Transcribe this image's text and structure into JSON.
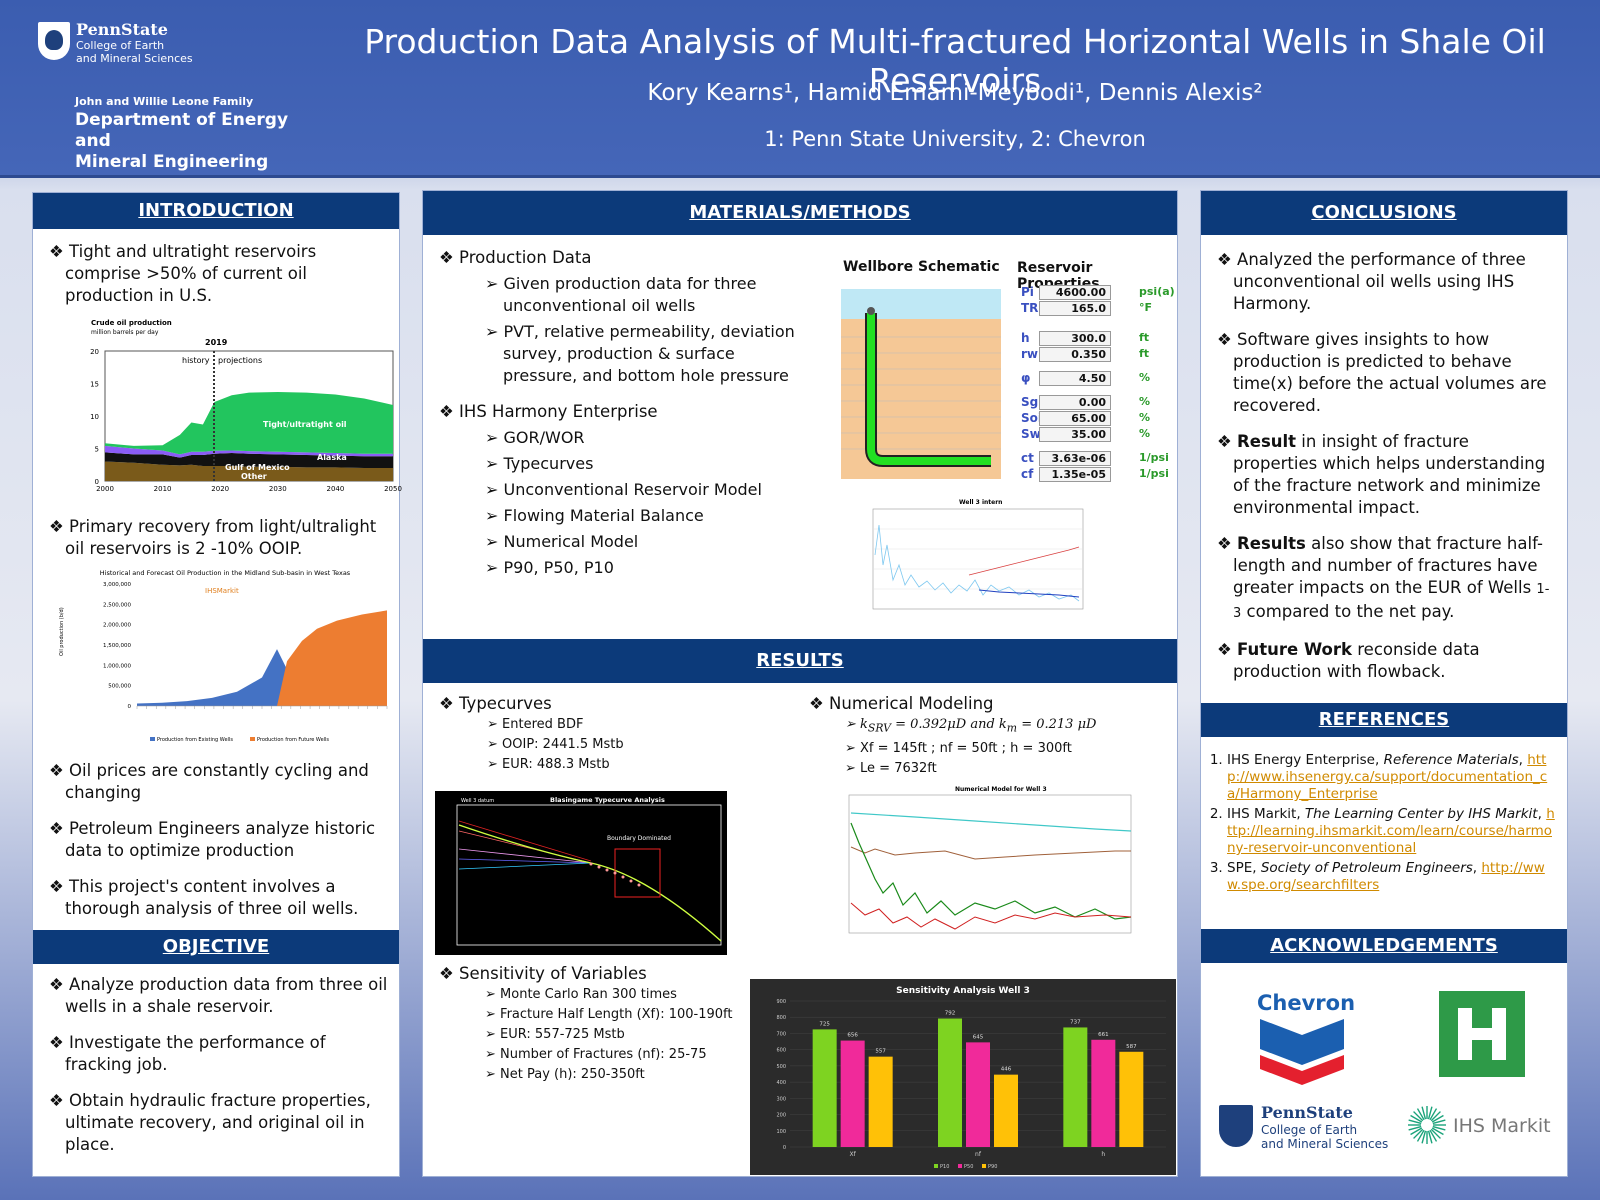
{
  "header": {
    "logo": {
      "name": "PennState",
      "sub1": "College of Earth",
      "sub2": "and Mineral Sciences"
    },
    "dept_top": "John and Willie Leone Family",
    "dept1": "Department of Energy and",
    "dept2": "Mineral Engineering",
    "title": "Production Data Analysis of Multi-fractured Horizontal Wells in Shale Oil Reservoirs",
    "authors": "Kory Kearns¹, Hamid Emami-Meybodi¹, Dennis Alexis²",
    "affiliations": "1: Penn State University, 2: Chevron"
  },
  "intro": {
    "heading": "INTRODUCTION",
    "b1": "Tight and ultratight reservoirs comprise >50% of current oil production in U.S.",
    "b2": "Primary recovery from light/ultralight oil reservoirs is 2 -10% OOIP.",
    "b3": "Oil prices are constantly cycling and changing",
    "b4": "Petroleum Engineers analyze historic data to optimize production",
    "b5": "This project's content involves a thorough analysis of three oil wells."
  },
  "chart1": {
    "title": "Crude oil production",
    "subtitle": "million barrels per day",
    "year": "2019",
    "history": "history",
    "projections": "projections",
    "l_tight": "Tight/ultratight oil",
    "l_alaska": "Alaska",
    "l_gulf": "Gulf of Mexico",
    "l_other": "Other",
    "yticks": [
      "20",
      "15",
      "10",
      "5",
      "0"
    ],
    "xticks": [
      "2000",
      "2010",
      "2020",
      "2030",
      "2040",
      "2050"
    ]
  },
  "chart_data": [
    {
      "type": "area",
      "title": "Crude oil production",
      "subtitle": "million barrels per day",
      "x": [
        2000,
        2005,
        2010,
        2013,
        2015,
        2017,
        2019,
        2022,
        2025,
        2030,
        2035,
        2040,
        2045,
        2050
      ],
      "series": [
        {
          "name": "Tight/ultratight oil",
          "values": [
            0.4,
            0.4,
            0.8,
            3.0,
            4.5,
            4.2,
            7.5,
            8.5,
            9.0,
            9.2,
            9.2,
            9.0,
            8.5,
            7.5
          ]
        },
        {
          "name": "Alaska",
          "values": [
            1,
            0.9,
            0.6,
            0.5,
            0.5,
            0.5,
            0.45,
            0.4,
            0.4,
            0.4,
            0.4,
            0.4,
            0.4,
            0.4
          ]
        },
        {
          "name": "Gulf of Mexico",
          "values": [
            1.4,
            1.3,
            1.6,
            1.2,
            1.5,
            1.7,
            1.9,
            2.0,
            2.0,
            1.9,
            1.9,
            1.8,
            1.8,
            1.8
          ]
        },
        {
          "name": "Other",
          "values": [
            3,
            2.8,
            2.5,
            2.4,
            2.5,
            2.3,
            2.3,
            2.3,
            2.2,
            2.2,
            2.1,
            2.1,
            2.0,
            2.0
          ]
        }
      ],
      "ylim": [
        0,
        20
      ],
      "xlim": [
        2000,
        2050
      ]
    },
    {
      "type": "area",
      "title": "Historical and Forecast Oil Production in the Midland Sub-basin in West Texas",
      "x": [
        0,
        5,
        10,
        15,
        20,
        25,
        28,
        30,
        33,
        36,
        40,
        45,
        50
      ],
      "series": [
        {
          "name": "Production from Existing Wells",
          "values": [
            60000,
            80000,
            120000,
            200000,
            350000,
            700000,
            1400000,
            900000,
            600000,
            450000,
            350000,
            300000,
            250000
          ]
        },
        {
          "name": "Production from Future Wells",
          "values": [
            0,
            0,
            0,
            0,
            0,
            0,
            0,
            1100000,
            1600000,
            1900000,
            2100000,
            2250000,
            2350000
          ]
        }
      ],
      "ylim": [
        0,
        3000000
      ]
    },
    {
      "type": "bar",
      "title": "Sensitivity Analysis Well 3",
      "categories": [
        "Xf",
        "nf",
        "h"
      ],
      "series": [
        {
          "name": "P10",
          "values": [
            725,
            792,
            737
          ]
        },
        {
          "name": "P50",
          "values": [
            656,
            645,
            661
          ]
        },
        {
          "name": "P90",
          "values": [
            557,
            446,
            587
          ]
        }
      ],
      "ylim": [
        0,
        900
      ]
    }
  ],
  "chart2": {
    "title": "Historical and Forecast Oil Production in the Midland Sub-basin in West Texas",
    "ihs": "IHSMarkit",
    "ylabel": "Oil production (b/d)",
    "yticks": [
      "3,000,000",
      "2,500,000",
      "2,000,000",
      "1,500,000",
      "1,000,000",
      "500,000",
      "0"
    ],
    "leg1": "Production from Existing Wells",
    "leg2": "Production from Future Wells"
  },
  "objective": {
    "heading": "OBJECTIVE",
    "b1": "Analyze production data from three oil wells in a shale reservoir.",
    "b2": "Investigate the performance of fracking job.",
    "b3": "Obtain hydraulic fracture properties, ultimate recovery, and original oil in place."
  },
  "methods": {
    "heading": "MATERIALS/METHODS",
    "b1": "Production Data",
    "s1": "Given production data for three unconventional oil wells",
    "s2": "PVT, relative permeability, deviation survey, production & surface pressure, and bottom hole pressure",
    "b2": "IHS Harmony Enterprise",
    "s3": "GOR/WOR",
    "s4": "Typecurves",
    "s5": "Unconventional Reservoir Model",
    "s6": "Flowing Material Balance",
    "s7": "Numerical Model",
    "s8": "P90, P50, P10",
    "wellbore": "Wellbore Schematic",
    "resprops": "Reservoir Properties",
    "props": [
      {
        "n": "Pi",
        "v": "4600.00",
        "u": "psi(a)"
      },
      {
        "n": "TR",
        "v": "165.0",
        "u": "°F"
      },
      {
        "n": "h",
        "v": "300.0",
        "u": "ft"
      },
      {
        "n": "rw",
        "v": "0.350",
        "u": "ft"
      },
      {
        "n": "φ",
        "v": "4.50",
        "u": "%"
      },
      {
        "n": "Sgi",
        "v": "0.00",
        "u": "%"
      },
      {
        "n": "Soi",
        "v": "65.00",
        "u": "%"
      },
      {
        "n": "Swi",
        "v": "35.00",
        "u": "%"
      },
      {
        "n": "ct",
        "v": "3.63e-06",
        "u": "1/psi"
      },
      {
        "n": "cf",
        "v": "1.35e-05",
        "u": "1/psi"
      }
    ],
    "well_label": "Well 3 intern"
  },
  "results": {
    "heading": "RESULTS",
    "typecurves": "Typecurves",
    "t1": "Entered BDF",
    "t2": "OOIP: 2441.5 Mstb",
    "t3": "EUR: 488.3 Mstb",
    "numerical": "Numerical Modeling",
    "n1a": "k",
    "n1b": "SRV",
    "n1c": " =  0.392μD and ",
    "n1d": "k",
    "n1e": "m",
    "n1f": " = 0.213 μD",
    "n2": "Xf = 145ft ; nf = 50ft ; h = 300ft",
    "n3": "Le = 7632ft",
    "blasingame": "Blasingame Typecurve Analysis",
    "boundary": "Boundary Dominated",
    "well3": "Well 3 datum",
    "nm_title": "Numerical Model for Well 3",
    "sensitivity": "Sensitivity of Variables",
    "v1": "Monte Carlo Ran 300 times",
    "v2": "Fracture Half Length (Xf): 100-190ft",
    "v3": "EUR:  557-725 Mstb",
    "v4": "Number of Fractures (nf):  25-75",
    "v5": "Net Pay (h): 250-350ft",
    "sa_title": "Sensitivity Analysis Well 3",
    "sa_legend": [
      "P10",
      "P50",
      "P90"
    ]
  },
  "conclusions": {
    "heading": "CONCLUSIONS",
    "b1": "Analyzed the performance of three unconventional oil wells using IHS Harmony.",
    "b2": "Software gives insights to how production is predicted to behave time(x) before the actual volumes are recovered.",
    "b3a": "Result",
    "b3b": " in insight of fracture properties which helps understanding of the fracture network and minimize environmental impact.",
    "b4a": "Results",
    "b4b": " also show that fracture half-length and number of fractures have greater impacts on the EUR of Wells ",
    "b4c": "1-3",
    "b4d": " compared to the net pay.",
    "b5a": "Future Work",
    "b5b": " reconside data production with flowback."
  },
  "references": {
    "heading": "REFERENCES",
    "r1a": "IHS Energy Enterprise, ",
    "r1b": "Reference Materials",
    "r1url": "http://www.ihsenergy.ca/support/documentation_ca/Harmony_Enterprise",
    "r2a": "IHS Markit, ",
    "r2b": "The Learning Center by IHS Markit",
    "r2url": "http://learning.ihsmarkit.com/learn/course/harmony-reservoir-unconventional",
    "r3a": "SPE, ",
    "r3b": "Society of Petroleum Engineers",
    "r3url": "http://www.spe.org/searchfilters"
  },
  "ack": {
    "heading": "ACKNOWLEDGEMENTS",
    "chevron": "Chevron",
    "psu": "PennState",
    "psu1": "College of Earth",
    "psu2": "and Mineral Sciences",
    "ihs": "IHS Markit"
  }
}
